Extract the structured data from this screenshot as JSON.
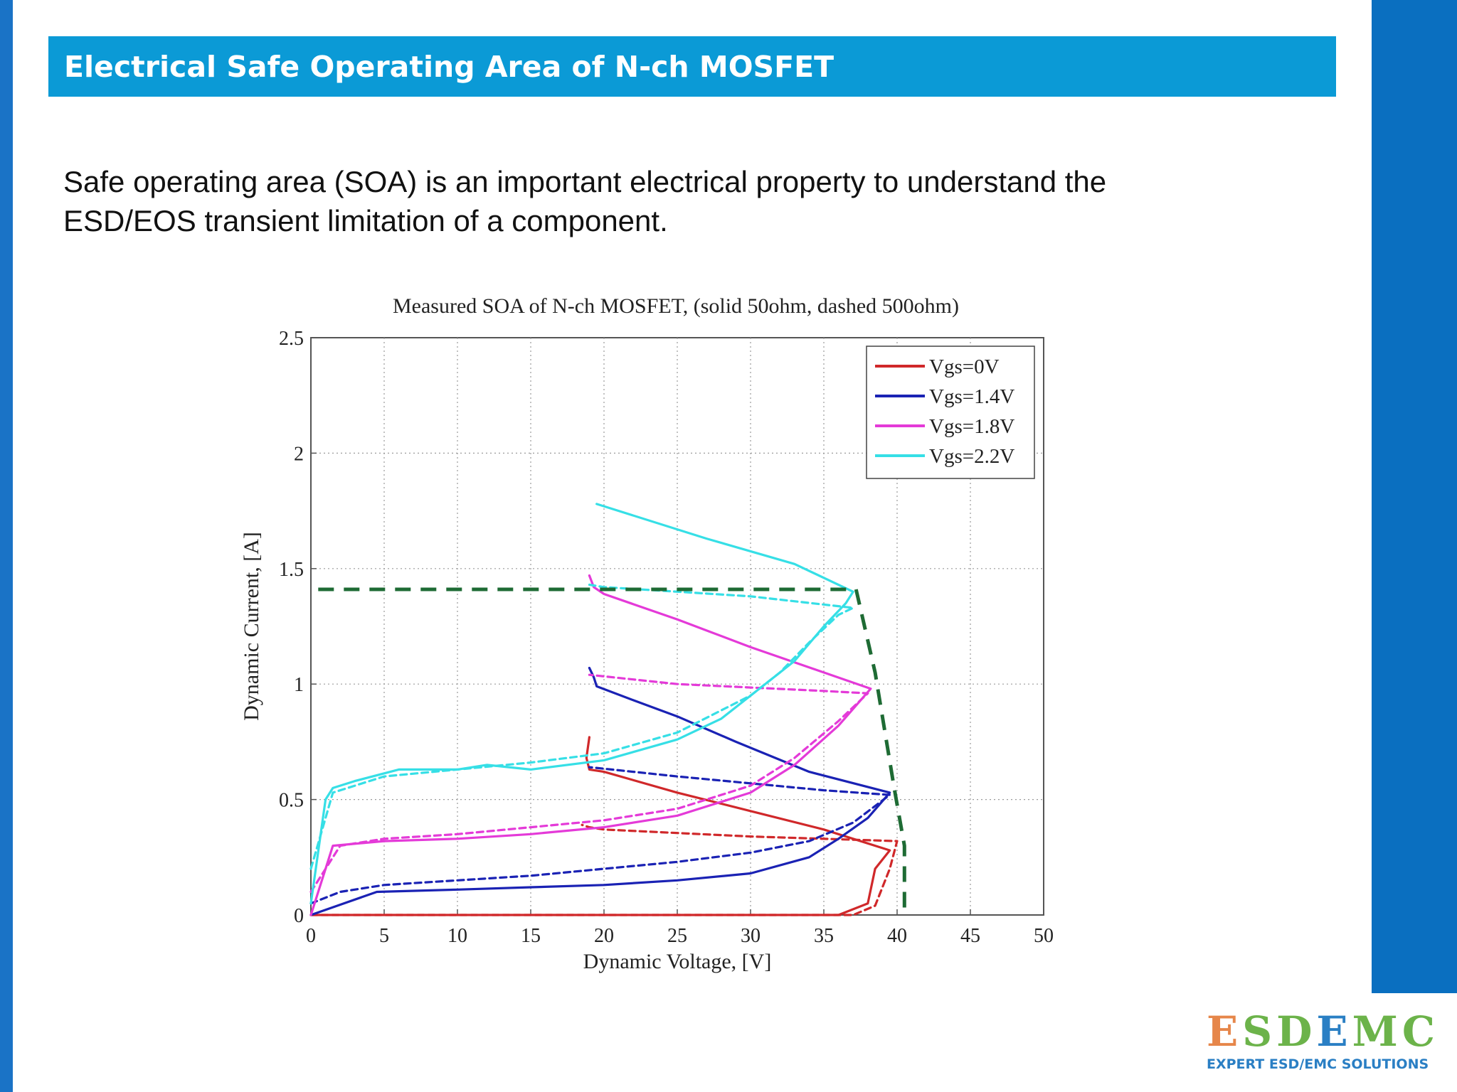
{
  "header": {
    "title": "Electrical Safe Operating Area of N-ch MOSFET"
  },
  "intro": {
    "line1": "Safe operating area (SOA) is an important electrical property to understand the",
    "line2": "ESD/EOS transient limitation of a component."
  },
  "colors": {
    "banner": "#0b9ad6",
    "sidebar": "#1a73c6",
    "vgs0": "#d0282a",
    "vgs14": "#1a22b4",
    "vgs18": "#e43ad8",
    "vgs22": "#36dfe6",
    "soa_limit": "#1e6b34"
  },
  "logo": {
    "main_parts": [
      "E",
      "SD",
      "E",
      "MC"
    ],
    "tagline": "EXPERT ESD/EMC SOLUTIONS"
  },
  "chart_data": {
    "type": "line",
    "title": "Measured SOA of N-ch MOSFET, (solid 50ohm, dashed 500ohm)",
    "xlabel": "Dynamic Voltage, [V]",
    "ylabel": "Dynamic Current, [A]",
    "xlim": [
      0,
      50
    ],
    "ylim": [
      0,
      2.5
    ],
    "x_ticks": [
      0,
      5,
      10,
      15,
      20,
      25,
      30,
      35,
      40,
      45,
      50
    ],
    "y_ticks": [
      0,
      0.5,
      1,
      1.5,
      2,
      2.5
    ],
    "y_tick_labels": [
      "0",
      "0.5",
      "1",
      "1.5",
      "2",
      "2.5"
    ],
    "grid": true,
    "legend_position": "top-right",
    "series": [
      {
        "name": "Vgs=0V",
        "color": "#d0282a",
        "style": "solid",
        "points": [
          [
            0,
            0
          ],
          [
            36,
            0
          ],
          [
            38,
            0.05
          ],
          [
            38.5,
            0.2
          ],
          [
            39.5,
            0.28
          ],
          [
            35,
            0.37
          ],
          [
            25,
            0.53
          ],
          [
            20,
            0.62
          ],
          [
            19,
            0.63
          ],
          [
            18.8,
            0.68
          ],
          [
            19,
            0.77
          ]
        ]
      },
      {
        "name": "Vgs=0V",
        "color": "#d0282a",
        "style": "dashed",
        "points": [
          [
            0,
            0
          ],
          [
            37,
            0
          ],
          [
            38.5,
            0.04
          ],
          [
            39.5,
            0.2
          ],
          [
            40,
            0.32
          ],
          [
            30,
            0.34
          ],
          [
            20,
            0.37
          ],
          [
            19,
            0.38
          ],
          [
            18.5,
            0.39
          ]
        ]
      },
      {
        "name": "Vgs=1.4V",
        "color": "#1a22b4",
        "style": "solid",
        "points": [
          [
            0,
            0
          ],
          [
            4.5,
            0.1
          ],
          [
            10,
            0.11
          ],
          [
            15,
            0.12
          ],
          [
            20,
            0.13
          ],
          [
            25,
            0.15
          ],
          [
            30,
            0.18
          ],
          [
            34,
            0.25
          ],
          [
            36,
            0.33
          ],
          [
            38,
            0.42
          ],
          [
            39.5,
            0.53
          ],
          [
            34,
            0.62
          ],
          [
            29,
            0.75
          ],
          [
            25,
            0.86
          ],
          [
            22,
            0.93
          ],
          [
            19.5,
            0.99
          ],
          [
            19.3,
            1.03
          ],
          [
            19,
            1.07
          ]
        ]
      },
      {
        "name": "Vgs=1.4V",
        "color": "#1a22b4",
        "style": "dashed",
        "points": [
          [
            0,
            0.05
          ],
          [
            2,
            0.1
          ],
          [
            5,
            0.13
          ],
          [
            10,
            0.15
          ],
          [
            15,
            0.17
          ],
          [
            20,
            0.2
          ],
          [
            25,
            0.23
          ],
          [
            30,
            0.27
          ],
          [
            34,
            0.32
          ],
          [
            37,
            0.4
          ],
          [
            39.5,
            0.52
          ],
          [
            35,
            0.54
          ],
          [
            25,
            0.6
          ],
          [
            19,
            0.64
          ]
        ]
      },
      {
        "name": "Vgs=1.8V",
        "color": "#e43ad8",
        "style": "solid",
        "points": [
          [
            0,
            0
          ],
          [
            1.5,
            0.3
          ],
          [
            5,
            0.32
          ],
          [
            10,
            0.33
          ],
          [
            15,
            0.35
          ],
          [
            20,
            0.38
          ],
          [
            25,
            0.43
          ],
          [
            30,
            0.53
          ],
          [
            33,
            0.65
          ],
          [
            36,
            0.82
          ],
          [
            38.2,
            0.98
          ],
          [
            30,
            1.16
          ],
          [
            25,
            1.28
          ],
          [
            20,
            1.39
          ],
          [
            19.3,
            1.42
          ],
          [
            19,
            1.47
          ]
        ]
      },
      {
        "name": "Vgs=1.8V",
        "color": "#e43ad8",
        "style": "dashed",
        "points": [
          [
            0,
            0.1
          ],
          [
            2,
            0.3
          ],
          [
            5,
            0.33
          ],
          [
            10,
            0.35
          ],
          [
            15,
            0.38
          ],
          [
            20,
            0.41
          ],
          [
            25,
            0.46
          ],
          [
            30,
            0.56
          ],
          [
            33,
            0.68
          ],
          [
            36,
            0.84
          ],
          [
            38,
            0.96
          ],
          [
            35,
            0.97
          ],
          [
            25,
            1.0
          ],
          [
            19,
            1.04
          ]
        ]
      },
      {
        "name": "Vgs=2.2V",
        "color": "#36dfe6",
        "style": "solid",
        "points": [
          [
            0,
            0.05
          ],
          [
            1,
            0.5
          ],
          [
            1.5,
            0.55
          ],
          [
            3,
            0.58
          ],
          [
            6,
            0.63
          ],
          [
            10,
            0.63
          ],
          [
            12,
            0.65
          ],
          [
            15,
            0.63
          ],
          [
            20,
            0.67
          ],
          [
            25,
            0.76
          ],
          [
            28,
            0.85
          ],
          [
            31,
            1.0
          ],
          [
            33,
            1.1
          ],
          [
            35,
            1.25
          ],
          [
            36.5,
            1.35
          ],
          [
            37,
            1.4
          ],
          [
            33,
            1.52
          ],
          [
            27,
            1.63
          ],
          [
            19.5,
            1.78
          ]
        ]
      },
      {
        "name": "Vgs=2.2V",
        "color": "#36dfe6",
        "style": "dashed",
        "points": [
          [
            0,
            0.2
          ],
          [
            1.5,
            0.53
          ],
          [
            5,
            0.6
          ],
          [
            10,
            0.63
          ],
          [
            15,
            0.66
          ],
          [
            20,
            0.7
          ],
          [
            25,
            0.79
          ],
          [
            30,
            0.95
          ],
          [
            32,
            1.05
          ],
          [
            34,
            1.18
          ],
          [
            36,
            1.3
          ],
          [
            37,
            1.33
          ],
          [
            30,
            1.38
          ],
          [
            20,
            1.42
          ],
          [
            19,
            1.43
          ]
        ]
      }
    ],
    "soa_limit": {
      "color": "#1e6b34",
      "style": "dashed",
      "points": [
        [
          0.5,
          1.41
        ],
        [
          37.2,
          1.41
        ],
        [
          38.5,
          1.05
        ],
        [
          39.8,
          0.55
        ],
        [
          40.5,
          0.3
        ],
        [
          40.5,
          0
        ]
      ]
    }
  }
}
